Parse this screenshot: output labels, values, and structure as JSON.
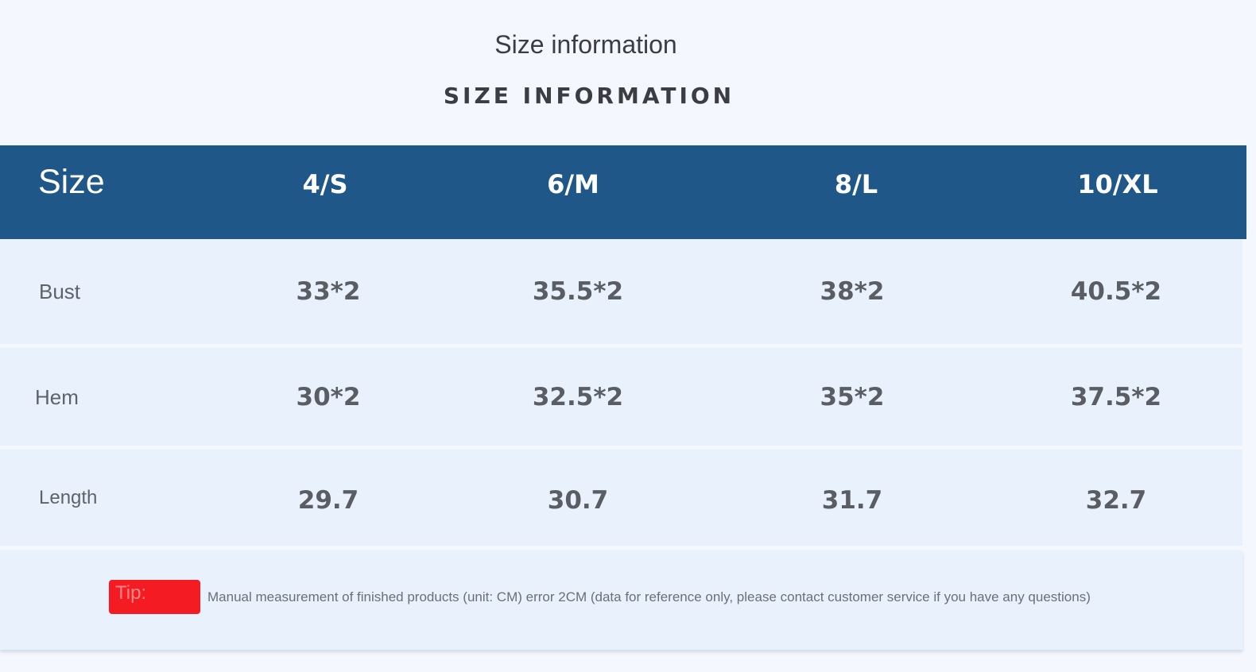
{
  "title": "Size information",
  "subtitle": "SIZE INFORMATION",
  "table": {
    "header_label": "Size",
    "sizes": [
      "4/S",
      "6/M",
      "8/L",
      "10/XL"
    ],
    "rows": [
      {
        "label": "Bust",
        "values": [
          "33*2",
          "35.5*2",
          "38*2",
          "40.5*2"
        ]
      },
      {
        "label": "Hem",
        "values": [
          "30*2",
          "32.5*2",
          "35*2",
          "37.5*2"
        ]
      },
      {
        "label": "Length",
        "values": [
          "29.7",
          "30.7",
          "31.7",
          "32.7"
        ]
      }
    ]
  },
  "tip": {
    "badge": "Tip:",
    "text": "Manual measurement of finished products (unit: CM) error 2CM (data for reference only, please contact customer service if you have any questions)"
  },
  "colors": {
    "header": "#1f5789",
    "row": "#e9f2fc",
    "tip_badge": "#f41c22"
  }
}
